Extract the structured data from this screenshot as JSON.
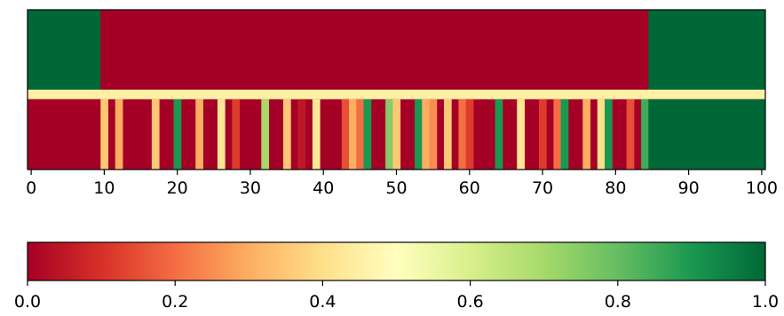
{
  "chart_data": [
    {
      "type": "heatmap",
      "title": "",
      "xlabel": "",
      "ylabel": "",
      "xlim": [
        -0.5,
        100.5
      ],
      "xticks": [
        0,
        10,
        20,
        30,
        40,
        50,
        60,
        70,
        80,
        90,
        100
      ],
      "xtick_labels": [
        "0",
        "10",
        "20",
        "30",
        "40",
        "50",
        "60",
        "70",
        "80",
        "90",
        "100"
      ],
      "yticks": [],
      "rows": [
        {
          "segments": [
            {
              "x0": -0.5,
              "x1": 9.5,
              "value": 1.0
            },
            {
              "x0": 9.5,
              "x1": 84.5,
              "value": 0.0
            },
            {
              "x0": 84.5,
              "x1": 100.5,
              "value": 1.0
            }
          ]
        },
        {
          "segments": [
            {
              "x0": -0.5,
              "x1": 100.5,
              "value": 0.45
            }
          ]
        },
        {
          "segments": [
            {
              "x0": -0.5,
              "x1": 9.5,
              "value": 0.0
            },
            {
              "x0": 9.5,
              "x1": 10.5,
              "value": 0.35
            },
            {
              "x0": 11.5,
              "x1": 12.5,
              "value": 0.3
            },
            {
              "x0": 16.5,
              "x1": 17.5,
              "value": 0.35
            },
            {
              "x0": 19.5,
              "x1": 20.5,
              "value": 0.9
            },
            {
              "x0": 22.5,
              "x1": 23.5,
              "value": 0.3
            },
            {
              "x0": 25.5,
              "x1": 26.5,
              "value": 0.42
            },
            {
              "x0": 27.5,
              "x1": 28.5,
              "value": 0.12
            },
            {
              "x0": 31.5,
              "x1": 32.5,
              "value": 0.7
            },
            {
              "x0": 34.5,
              "x1": 35.5,
              "value": 0.35
            },
            {
              "x0": 36.5,
              "x1": 37.5,
              "value": 0.05
            },
            {
              "x0": 38.5,
              "x1": 39.5,
              "value": 0.42
            },
            {
              "x0": 42.5,
              "x1": 43.5,
              "value": 0.15
            },
            {
              "x0": 43.5,
              "x1": 44.5,
              "value": 0.3
            },
            {
              "x0": 44.5,
              "x1": 45.5,
              "value": 0.2
            },
            {
              "x0": 45.5,
              "x1": 46.5,
              "value": 0.9
            },
            {
              "x0": 48.5,
              "x1": 49.5,
              "value": 0.75
            },
            {
              "x0": 49.5,
              "x1": 50.5,
              "value": 0.35
            },
            {
              "x0": 52.5,
              "x1": 53.5,
              "value": 0.9
            },
            {
              "x0": 53.5,
              "x1": 54.5,
              "value": 0.3
            },
            {
              "x0": 54.5,
              "x1": 55.5,
              "value": 0.25
            },
            {
              "x0": 56.5,
              "x1": 57.5,
              "value": 0.35
            },
            {
              "x0": 58.5,
              "x1": 59.5,
              "value": 0.2
            },
            {
              "x0": 59.5,
              "x1": 60.5,
              "value": 0.12
            },
            {
              "x0": 63.5,
              "x1": 64.5,
              "value": 0.9
            },
            {
              "x0": 66.5,
              "x1": 67.5,
              "value": 0.42
            },
            {
              "x0": 69.5,
              "x1": 70.5,
              "value": 0.12
            },
            {
              "x0": 71.5,
              "x1": 72.5,
              "value": 0.2
            },
            {
              "x0": 72.5,
              "x1": 73.5,
              "value": 0.9
            },
            {
              "x0": 75.5,
              "x1": 76.5,
              "value": 0.3
            },
            {
              "x0": 77.5,
              "x1": 78.5,
              "value": 0.4
            },
            {
              "x0": 78.5,
              "x1": 79.5,
              "value": 0.9
            },
            {
              "x0": 81.5,
              "x1": 82.5,
              "value": 0.15
            },
            {
              "x0": 83.5,
              "x1": 84.5,
              "value": 0.85
            },
            {
              "x0": 84.5,
              "x1": 100.5,
              "value": 1.0
            }
          ],
          "default_value": 0.0
        }
      ],
      "row_heights": [
        0.5,
        0.06,
        0.44
      ]
    },
    {
      "type": "colorbar",
      "colormap": "RdYlGn",
      "range": [
        0.0,
        1.0
      ],
      "ticks": [
        0.0,
        0.2,
        0.4,
        0.6,
        0.8,
        1.0
      ],
      "tick_labels": [
        "0.0",
        "0.2",
        "0.4",
        "0.6",
        "0.8",
        "1.0"
      ]
    }
  ]
}
